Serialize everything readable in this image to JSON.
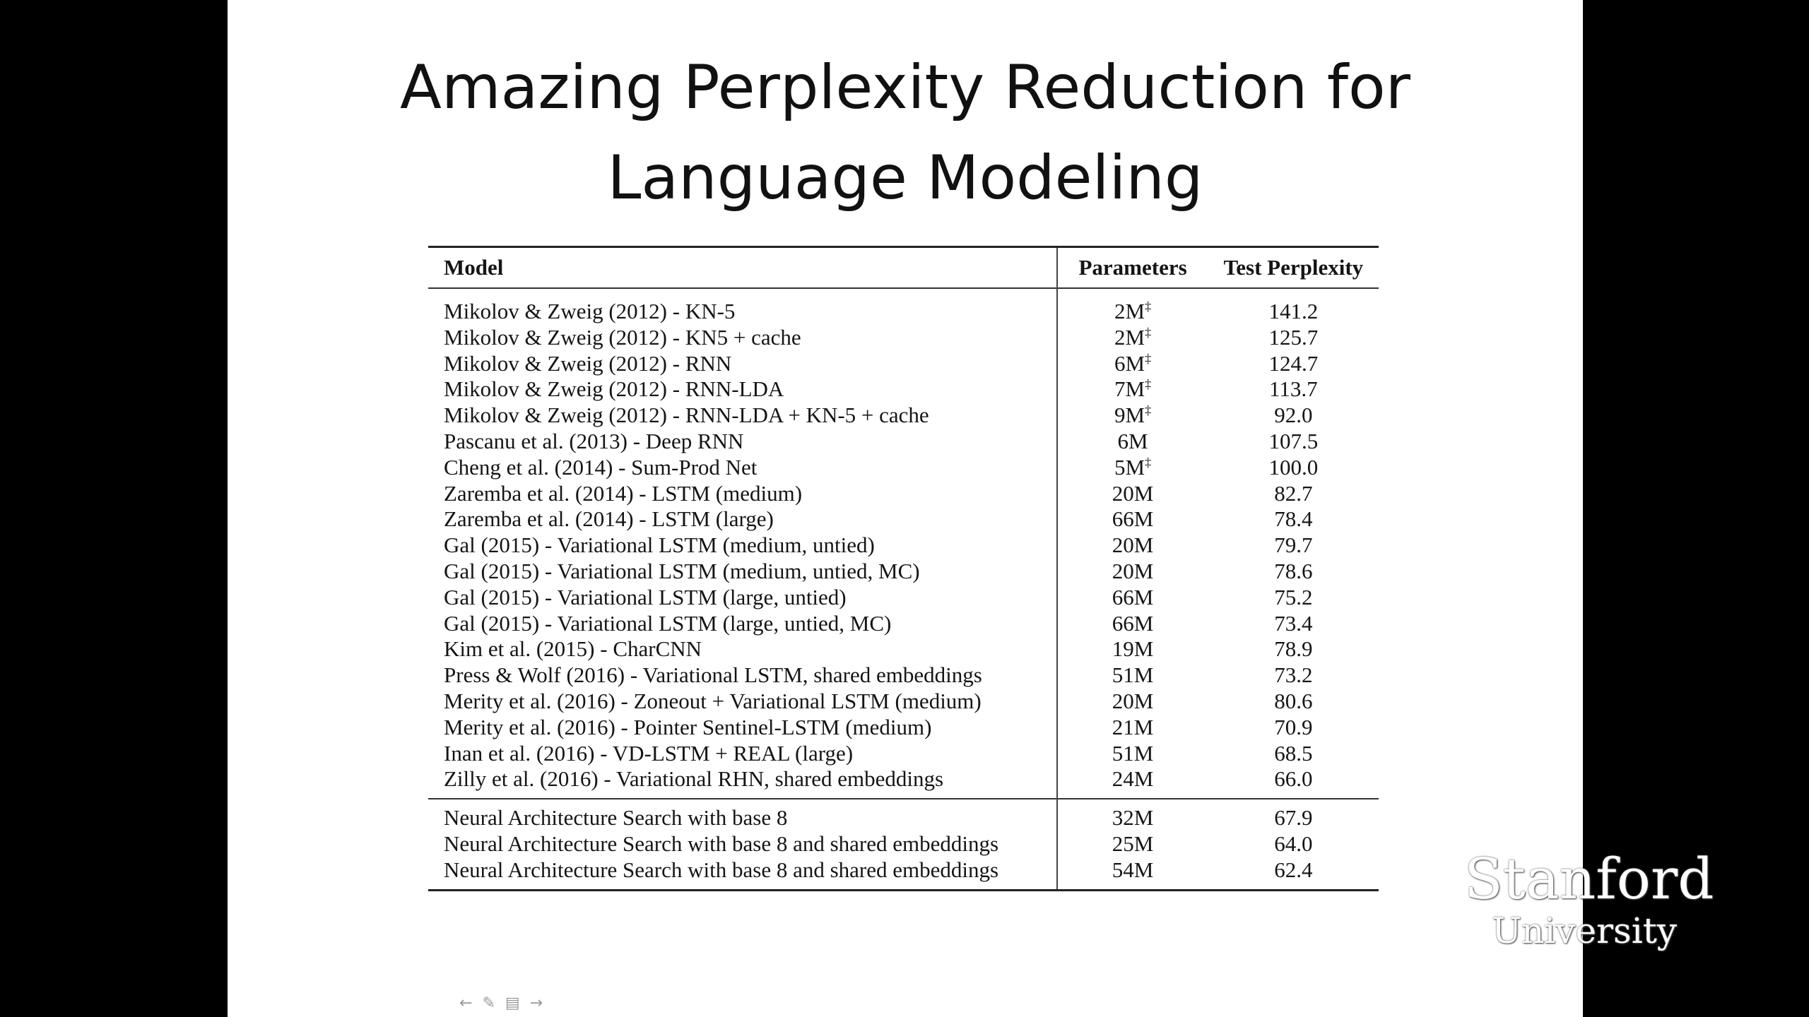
{
  "title": {
    "line1": "Amazing Perplexity Reduction for",
    "line2": "Language Modeling"
  },
  "table": {
    "headers": [
      "Model",
      "Parameters",
      "Test Perplexity"
    ],
    "rows": [
      {
        "model": "Mikolov & Zweig (2012) - KN-5",
        "params": "2M",
        "mark": "‡",
        "ppl": "141.2"
      },
      {
        "model": "Mikolov & Zweig (2012) - KN5 + cache",
        "params": "2M",
        "mark": "‡",
        "ppl": "125.7"
      },
      {
        "model": "Mikolov & Zweig (2012) - RNN",
        "params": "6M",
        "mark": "‡",
        "ppl": "124.7"
      },
      {
        "model": "Mikolov & Zweig (2012) - RNN-LDA",
        "params": "7M",
        "mark": "‡",
        "ppl": "113.7"
      },
      {
        "model": "Mikolov & Zweig (2012) - RNN-LDA + KN-5 + cache",
        "params": "9M",
        "mark": "‡",
        "ppl": "92.0"
      },
      {
        "model": "Pascanu et al. (2013) - Deep RNN",
        "params": "6M",
        "mark": "",
        "ppl": "107.5"
      },
      {
        "model": "Cheng et al. (2014) - Sum-Prod Net",
        "params": "5M",
        "mark": "‡",
        "ppl": "100.0"
      },
      {
        "model": "Zaremba et al. (2014) - LSTM (medium)",
        "params": "20M",
        "mark": "",
        "ppl": "82.7"
      },
      {
        "model": "Zaremba et al. (2014) - LSTM (large)",
        "params": "66M",
        "mark": "",
        "ppl": "78.4"
      },
      {
        "model": "Gal (2015) - Variational LSTM (medium, untied)",
        "params": "20M",
        "mark": "",
        "ppl": "79.7"
      },
      {
        "model": "Gal (2015) - Variational LSTM (medium, untied, MC)",
        "params": "20M",
        "mark": "",
        "ppl": "78.6"
      },
      {
        "model": "Gal (2015) - Variational LSTM (large, untied)",
        "params": "66M",
        "mark": "",
        "ppl": "75.2"
      },
      {
        "model": "Gal (2015) - Variational LSTM (large, untied, MC)",
        "params": "66M",
        "mark": "",
        "ppl": "73.4"
      },
      {
        "model": "Kim et al. (2015) - CharCNN",
        "params": "19M",
        "mark": "",
        "ppl": "78.9"
      },
      {
        "model": "Press & Wolf (2016) - Variational LSTM, shared embeddings",
        "params": "51M",
        "mark": "",
        "ppl": "73.2"
      },
      {
        "model": "Merity et al. (2016) - Zoneout + Variational LSTM (medium)",
        "params": "20M",
        "mark": "",
        "ppl": "80.6"
      },
      {
        "model": "Merity et al. (2016) - Pointer Sentinel-LSTM (medium)",
        "params": "21M",
        "mark": "",
        "ppl": "70.9"
      },
      {
        "model": "Inan et al. (2016) - VD-LSTM + REAL (large)",
        "params": "51M",
        "mark": "",
        "ppl": "68.5"
      },
      {
        "model": "Zilly et al. (2016) - Variational RHN, shared embeddings",
        "params": "24M",
        "mark": "",
        "ppl": "66.0"
      }
    ],
    "nas_rows": [
      {
        "model": "Neural Architecture Search with base 8",
        "params": "32M",
        "mark": "",
        "ppl": "67.9"
      },
      {
        "model": "Neural Architecture Search with base 8 and shared embeddings",
        "params": "25M",
        "mark": "",
        "ppl": "64.0"
      },
      {
        "model": "Neural Architecture Search with base 8 and shared embeddings",
        "params": "54M",
        "mark": "",
        "ppl": "62.4"
      }
    ]
  },
  "logo": {
    "line1": "Stanford",
    "line2": "University"
  },
  "nav": {
    "prev_icon": "←",
    "pen_icon": "✎",
    "menu_icon": "▤",
    "next_icon": "→"
  }
}
